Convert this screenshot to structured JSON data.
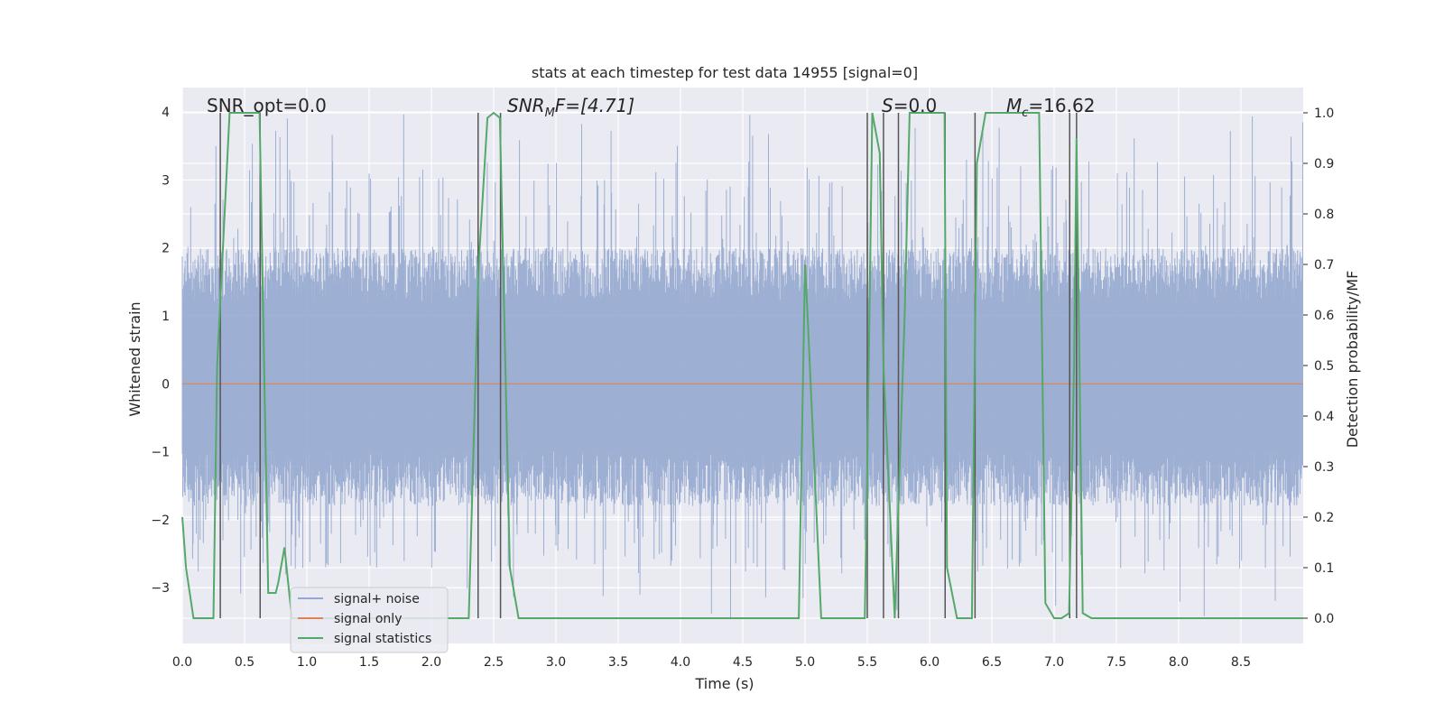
{
  "chart_data": {
    "type": "line",
    "title": "stats at each timestep for test data 14955 [signal=0]",
    "xlabel": "Time (s)",
    "ylabel": "Whitened strain",
    "y2label": "Detection probability/MF",
    "xlim": [
      0.0,
      9.0
    ],
    "ylim": [
      -3.82,
      4.36
    ],
    "y2lim": [
      -0.05,
      1.05
    ],
    "xticks": [
      "0.0",
      "0.5",
      "1.0",
      "1.5",
      "2.0",
      "2.5",
      "3.0",
      "3.5",
      "4.0",
      "4.5",
      "5.0",
      "5.5",
      "6.0",
      "6.5",
      "7.0",
      "7.5",
      "8.0",
      "8.5"
    ],
    "yticks": [
      "−3",
      "−2",
      "−1",
      "0",
      "1",
      "2",
      "3",
      "4"
    ],
    "y2ticks": [
      "0.0",
      "0.1",
      "0.2",
      "0.3",
      "0.4",
      "0.5",
      "0.6",
      "0.7",
      "0.8",
      "0.9",
      "1.0"
    ],
    "grid": true,
    "legend_location": "lower-left",
    "annotations": {
      "snr_opt": "SNR_opt=0.0",
      "snr_mf_main": "SNR",
      "snr_mf_sub": "M",
      "snr_mf_rest": "F=[4.71]",
      "s_stat_main": "S",
      "s_stat_rest": "=0.0",
      "mc_main": "M",
      "mc_sub": "c",
      "mc_rest": "=16.62"
    },
    "series": [
      {
        "name": "signal+ noise",
        "color": "#95a9cf",
        "kind": "noise",
        "band": [
          -1.5,
          1.7
        ],
        "extreme": [
          -3.5,
          4.0
        ]
      },
      {
        "name": "signal only",
        "color": "#dd8452",
        "kind": "flat",
        "values": [
          0.0,
          0.0
        ]
      },
      {
        "name": "signal statistics",
        "color": "#55a868",
        "axis": "right",
        "x": [
          0.0,
          0.03,
          0.09,
          0.25,
          0.28,
          0.38,
          0.62,
          0.69,
          0.75,
          0.77,
          0.82,
          0.88,
          1.0,
          2.3,
          2.38,
          2.45,
          2.5,
          2.55,
          2.63,
          2.7,
          4.95,
          5.0,
          5.02,
          5.13,
          5.48,
          5.5,
          5.54,
          5.6,
          5.63,
          5.72,
          5.8,
          5.84,
          6.12,
          6.14,
          6.22,
          6.28,
          6.34,
          6.38,
          6.45,
          6.88,
          6.93,
          7.0,
          7.06,
          7.12,
          7.16,
          7.18,
          7.23,
          7.3,
          9.0
        ],
        "values": [
          0.2,
          0.1,
          0.0,
          0.0,
          0.5,
          1.0,
          1.0,
          0.05,
          0.05,
          0.07,
          0.14,
          0.0,
          0.0,
          0.0,
          0.7,
          0.99,
          1.0,
          0.99,
          0.1,
          0.0,
          0.0,
          0.7,
          0.6,
          0.0,
          0.0,
          0.3,
          1.0,
          0.92,
          0.5,
          0.0,
          0.6,
          1.0,
          1.0,
          0.1,
          0.0,
          0.0,
          0.0,
          0.9,
          1.0,
          1.0,
          0.03,
          0.0,
          0.0,
          0.01,
          0.5,
          0.95,
          0.01,
          0.0,
          0.0
        ]
      }
    ],
    "vlines": [
      0.305,
      0.625,
      2.375,
      2.555,
      5.5,
      5.63,
      5.75,
      6.125,
      6.365,
      7.125,
      7.18
    ]
  }
}
